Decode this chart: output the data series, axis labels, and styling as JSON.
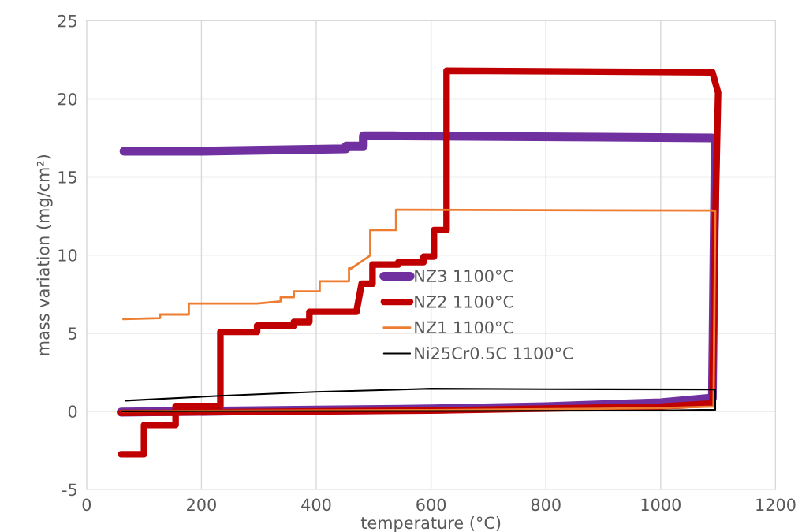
{
  "chart_data": {
    "type": "line",
    "xlabel": "temperature (°C)",
    "ylabel": "mass variation (mg/cm²)",
    "xlim": [
      0,
      1200
    ],
    "xticks": [
      0,
      200,
      400,
      600,
      800,
      1000,
      1200
    ],
    "ylim": [
      -5,
      25
    ],
    "yticks": [
      -5,
      0,
      5,
      10,
      15,
      20,
      25
    ],
    "grid": true,
    "legend": "right",
    "marker": "none",
    "line_style": "solid",
    "series": [
      {
        "name": "NZ3 1100°C",
        "color": "#7030a0",
        "x": [
          60,
          400,
          600,
          800,
          1000,
          1090,
          1095,
          1090,
          900,
          534,
          482,
          482,
          452,
          452,
          201,
          65
        ],
        "values": [
          -0.05,
          0.08,
          0.15,
          0.3,
          0.55,
          0.85,
          17.3,
          17.5,
          17.55,
          17.63,
          17.63,
          16.98,
          16.98,
          16.8,
          16.65,
          16.65
        ]
      },
      {
        "name": "NZ2 1100°C",
        "color": "#c00000",
        "x": [
          60,
          600,
          1000,
          1090,
          1095,
          1100,
          1090,
          627,
          627,
          605,
          605,
          587,
          587,
          543,
          543,
          516,
          498,
          498,
          479,
          470,
          388,
          388,
          361,
          361,
          297,
          297,
          233,
          233,
          155,
          155,
          100,
          100,
          60
        ],
        "values": [
          -0.1,
          0.05,
          0.3,
          0.5,
          12.0,
          20.4,
          21.7,
          21.8,
          11.6,
          11.6,
          9.9,
          9.9,
          9.55,
          9.55,
          9.4,
          9.4,
          9.4,
          8.17,
          8.17,
          6.37,
          6.37,
          5.72,
          5.72,
          5.48,
          5.48,
          5.08,
          5.08,
          0.34,
          0.34,
          -0.88,
          -0.88,
          -2.75,
          -2.75
        ]
      },
      {
        "name": "NZ1 1100°C",
        "color": "#ed7d31",
        "x": [
          60,
          600,
          1000,
          1092,
          1095,
          1090,
          539,
          539,
          494,
          494,
          475,
          461,
          457,
          457,
          406,
          406,
          361,
          361,
          338,
          338,
          297,
          178,
          178,
          128,
          128,
          64
        ],
        "values": [
          0.0,
          0.08,
          0.2,
          0.3,
          12.8,
          12.85,
          12.9,
          11.6,
          11.6,
          9.98,
          9.5,
          9.15,
          9.15,
          8.33,
          8.33,
          7.68,
          7.68,
          7.3,
          7.3,
          7.04,
          6.9,
          6.9,
          6.2,
          6.2,
          5.97,
          5.9
        ]
      },
      {
        "name": "Ni25Cr0.5C 1100°C",
        "color": "#000000",
        "x": [
          60,
          600,
          1000,
          1095,
          1095,
          800,
          600,
          398,
          233,
          68
        ],
        "values": [
          0.0,
          0.02,
          0.05,
          0.1,
          1.4,
          1.42,
          1.45,
          1.24,
          0.99,
          0.68
        ]
      }
    ]
  }
}
